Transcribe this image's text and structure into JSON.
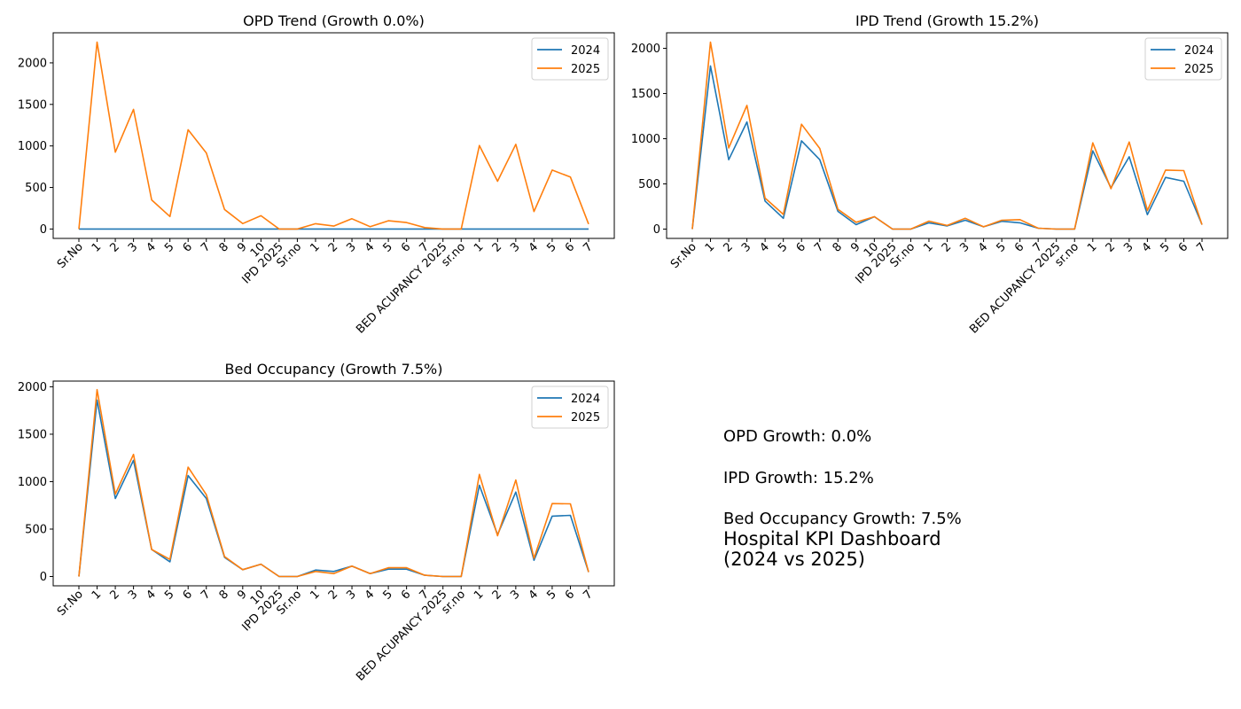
{
  "colors": {
    "series_2024": "#1f77b4",
    "series_2025": "#ff7f0e"
  },
  "summary": {
    "opd_growth": "OPD Growth: 0.0%",
    "ipd_growth": "IPD Growth: 15.2%",
    "bed_growth": "Bed Occupancy Growth: 7.5%",
    "title_line1": "Hospital KPI Dashboard",
    "title_line2": "(2024 vs 2025)"
  },
  "chart_data": [
    {
      "id": "opd",
      "type": "line",
      "title": "OPD Trend (Growth 0.0%)",
      "xlabel": "",
      "ylabel": "",
      "categories": [
        "Sr.No",
        "1",
        "2",
        "3",
        "4",
        "5",
        "6",
        "7",
        "8",
        "9",
        "10",
        "IPD 2025",
        "Sr.no",
        "1",
        "2",
        "3",
        "4",
        "5",
        "6",
        "7",
        "BED ACUPANCY 2025",
        "sr.no",
        "1",
        "2",
        "3",
        "4",
        "5",
        "6",
        "7"
      ],
      "yticks": [
        0,
        500,
        1000,
        1500,
        2000
      ],
      "ylim": [
        -113,
        2362
      ],
      "legend": "top-right",
      "grid": false,
      "series": [
        {
          "name": "2024",
          "values": [
            0,
            0,
            0,
            0,
            0,
            0,
            0,
            0,
            0,
            0,
            0,
            0,
            0,
            0,
            0,
            0,
            0,
            0,
            0,
            0,
            0,
            0,
            0,
            0,
            0,
            0,
            0,
            0,
            0
          ]
        },
        {
          "name": "2025",
          "values": [
            0,
            2250,
            925,
            1440,
            350,
            150,
            1195,
            915,
            235,
            65,
            160,
            0,
            0,
            64,
            35,
            124,
            28,
            99,
            78,
            17,
            0,
            0,
            1005,
            575,
            1020,
            210,
            710,
            625,
            60
          ]
        }
      ]
    },
    {
      "id": "ipd",
      "type": "line",
      "title": "IPD Trend (Growth 15.2%)",
      "xlabel": "",
      "ylabel": "",
      "categories": [
        "Sr.No",
        "1",
        "2",
        "3",
        "4",
        "5",
        "6",
        "7",
        "8",
        "9",
        "10",
        "IPD 2025",
        "Sr.no",
        "1",
        "2",
        "3",
        "4",
        "5",
        "6",
        "7",
        "BED ACUPANCY 2025",
        "sr.no",
        "1",
        "2",
        "3",
        "4",
        "5",
        "6",
        "7"
      ],
      "yticks": [
        0,
        500,
        1000,
        1500,
        2000
      ],
      "ylim": [
        -103,
        2172
      ],
      "legend": "top-right",
      "grid": false,
      "series": [
        {
          "name": "2024",
          "values": [
            0,
            1805,
            768,
            1186,
            310,
            120,
            977,
            768,
            196,
            49,
            137,
            0,
            0,
            70,
            35,
            98,
            25,
            86,
            70,
            10,
            0,
            0,
            866,
            457,
            800,
            160,
            572,
            529,
            49
          ]
        },
        {
          "name": "2025",
          "values": [
            0,
            2069,
            898,
            1369,
            343,
            163,
            1160,
            892,
            219,
            75,
            137,
            0,
            0,
            88,
            40,
            120,
            25,
            98,
            105,
            10,
            0,
            0,
            954,
            447,
            964,
            206,
            653,
            647,
            49
          ]
        }
      ]
    },
    {
      "id": "bed",
      "type": "line",
      "title": "Bed Occupancy (Growth 7.5%)",
      "xlabel": "",
      "ylabel": "",
      "categories": [
        "Sr.No",
        "1",
        "2",
        "3",
        "4",
        "5",
        "6",
        "7",
        "8",
        "9",
        "10",
        "IPD 2025",
        "Sr.no",
        "1",
        "2",
        "3",
        "4",
        "5",
        "6",
        "7",
        "BED ACUPANCY 2025",
        "sr.no",
        "1",
        "2",
        "3",
        "4",
        "5",
        "6",
        "7"
      ],
      "yticks": [
        0,
        500,
        1000,
        1500,
        2000
      ],
      "ylim": [
        -98,
        2060
      ],
      "legend": "top-right",
      "grid": false,
      "series": [
        {
          "name": "2024",
          "values": [
            0,
            1860,
            822,
            1225,
            285,
            155,
            1064,
            822,
            202,
            72,
            130,
            0,
            0,
            68,
            53,
            109,
            31,
            78,
            78,
            13,
            0,
            0,
            962,
            441,
            890,
            171,
            636,
            645,
            47
          ]
        },
        {
          "name": "2025",
          "values": [
            0,
            1969,
            869,
            1287,
            285,
            180,
            1153,
            862,
            210,
            72,
            130,
            0,
            0,
            53,
            31,
            109,
            31,
            93,
            93,
            13,
            0,
            0,
            1076,
            430,
            1017,
            193,
            769,
            766,
            47
          ]
        }
      ]
    }
  ]
}
